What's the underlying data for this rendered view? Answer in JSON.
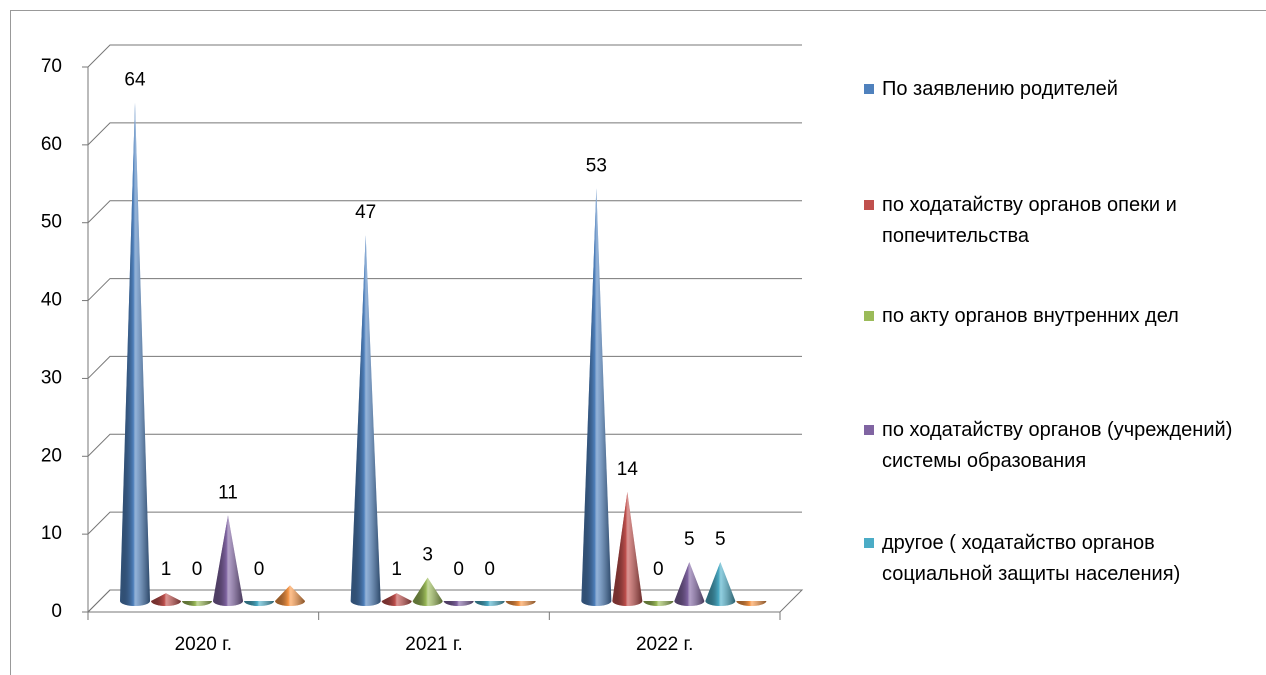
{
  "chart_data": {
    "type": "cone3d",
    "categories": [
      "2020 г.",
      "2021 г.",
      "2022 г."
    ],
    "ylim": [
      0,
      70
    ],
    "yticks": [
      0,
      10,
      20,
      30,
      40,
      50,
      60,
      70
    ],
    "grid": true,
    "legend": "right",
    "series": [
      {
        "name": "По заявлению родителей",
        "color": "#4f81bd",
        "values": [
          64,
          47,
          53
        ]
      },
      {
        "name": "по  ходатайству органов опеки и попечительства",
        "color": "#c0504d",
        "values": [
          1,
          1,
          14
        ]
      },
      {
        "name": "по акту органов внутренних дел",
        "color": "#9bbb59",
        "values": [
          0,
          3,
          0
        ]
      },
      {
        "name": "по ходатайству органов (учреждений) системы образования",
        "color": "#8064a2",
        "values": [
          11,
          0,
          5
        ]
      },
      {
        "name": "другое ( ходатайство  органов социальной защиты населения)",
        "color": "#4bacc6",
        "values": [
          0,
          0,
          5
        ]
      },
      {
        "color": "#f79646",
        "values": [
          2,
          0,
          0
        ],
        "data_labels": false
      }
    ]
  }
}
